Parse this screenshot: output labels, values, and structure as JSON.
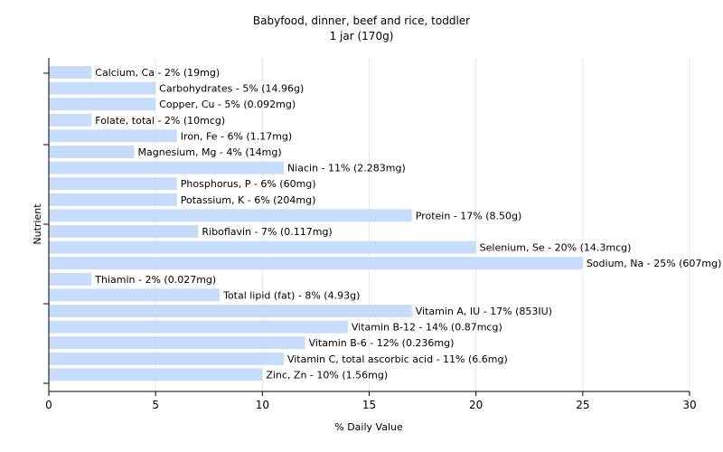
{
  "chart_data": {
    "type": "bar",
    "orientation": "horizontal",
    "title": "Babyfood, dinner, beef and rice, toddler",
    "subtitle": "1 jar (170g)",
    "xlabel": "% Daily Value",
    "ylabel": "Nutrient",
    "xlim": [
      0,
      30
    ],
    "xticks": [
      0,
      5,
      10,
      15,
      20,
      25,
      30
    ],
    "grid": true,
    "bar_color": "#c6dcfa",
    "grid_color": "#e8e8e8",
    "categories": [
      "Calcium, Ca",
      "Carbohydrates",
      "Copper, Cu",
      "Folate, total",
      "Iron, Fe",
      "Magnesium, Mg",
      "Niacin",
      "Phosphorus, P",
      "Potassium, K",
      "Protein",
      "Riboflavin",
      "Selenium, Se",
      "Sodium, Na",
      "Thiamin",
      "Total lipid (fat)",
      "Vitamin A, IU",
      "Vitamin B-12",
      "Vitamin B-6",
      "Vitamin C, total ascorbic acid",
      "Zinc, Zn"
    ],
    "values": [
      2,
      5,
      5,
      2,
      6,
      4,
      11,
      6,
      6,
      17,
      7,
      20,
      25,
      2,
      8,
      17,
      14,
      12,
      11,
      10
    ],
    "labels": [
      "Calcium, Ca - 2% (19mg)",
      "Carbohydrates - 5% (14.96g)",
      "Copper, Cu - 5% (0.092mg)",
      "Folate, total - 2% (10mcg)",
      "Iron, Fe - 6% (1.17mg)",
      "Magnesium, Mg - 4% (14mg)",
      "Niacin - 11% (2.283mg)",
      "Phosphorus, P - 6% (60mg)",
      "Potassium, K - 6% (204mg)",
      "Protein - 17% (8.50g)",
      "Riboflavin - 7% (0.117mg)",
      "Selenium, Se - 20% (14.3mcg)",
      "Sodium, Na - 25% (607mg)",
      "Thiamin - 2% (0.027mg)",
      "Total lipid (fat) - 8% (4.93g)",
      "Vitamin A, IU - 17% (853IU)",
      "Vitamin B-12 - 14% (0.87mcg)",
      "Vitamin B-6 - 12% (0.236mg)",
      "Vitamin C, total ascorbic acid - 11% (6.6mg)",
      "Zinc, Zn - 10% (1.56mg)"
    ]
  }
}
